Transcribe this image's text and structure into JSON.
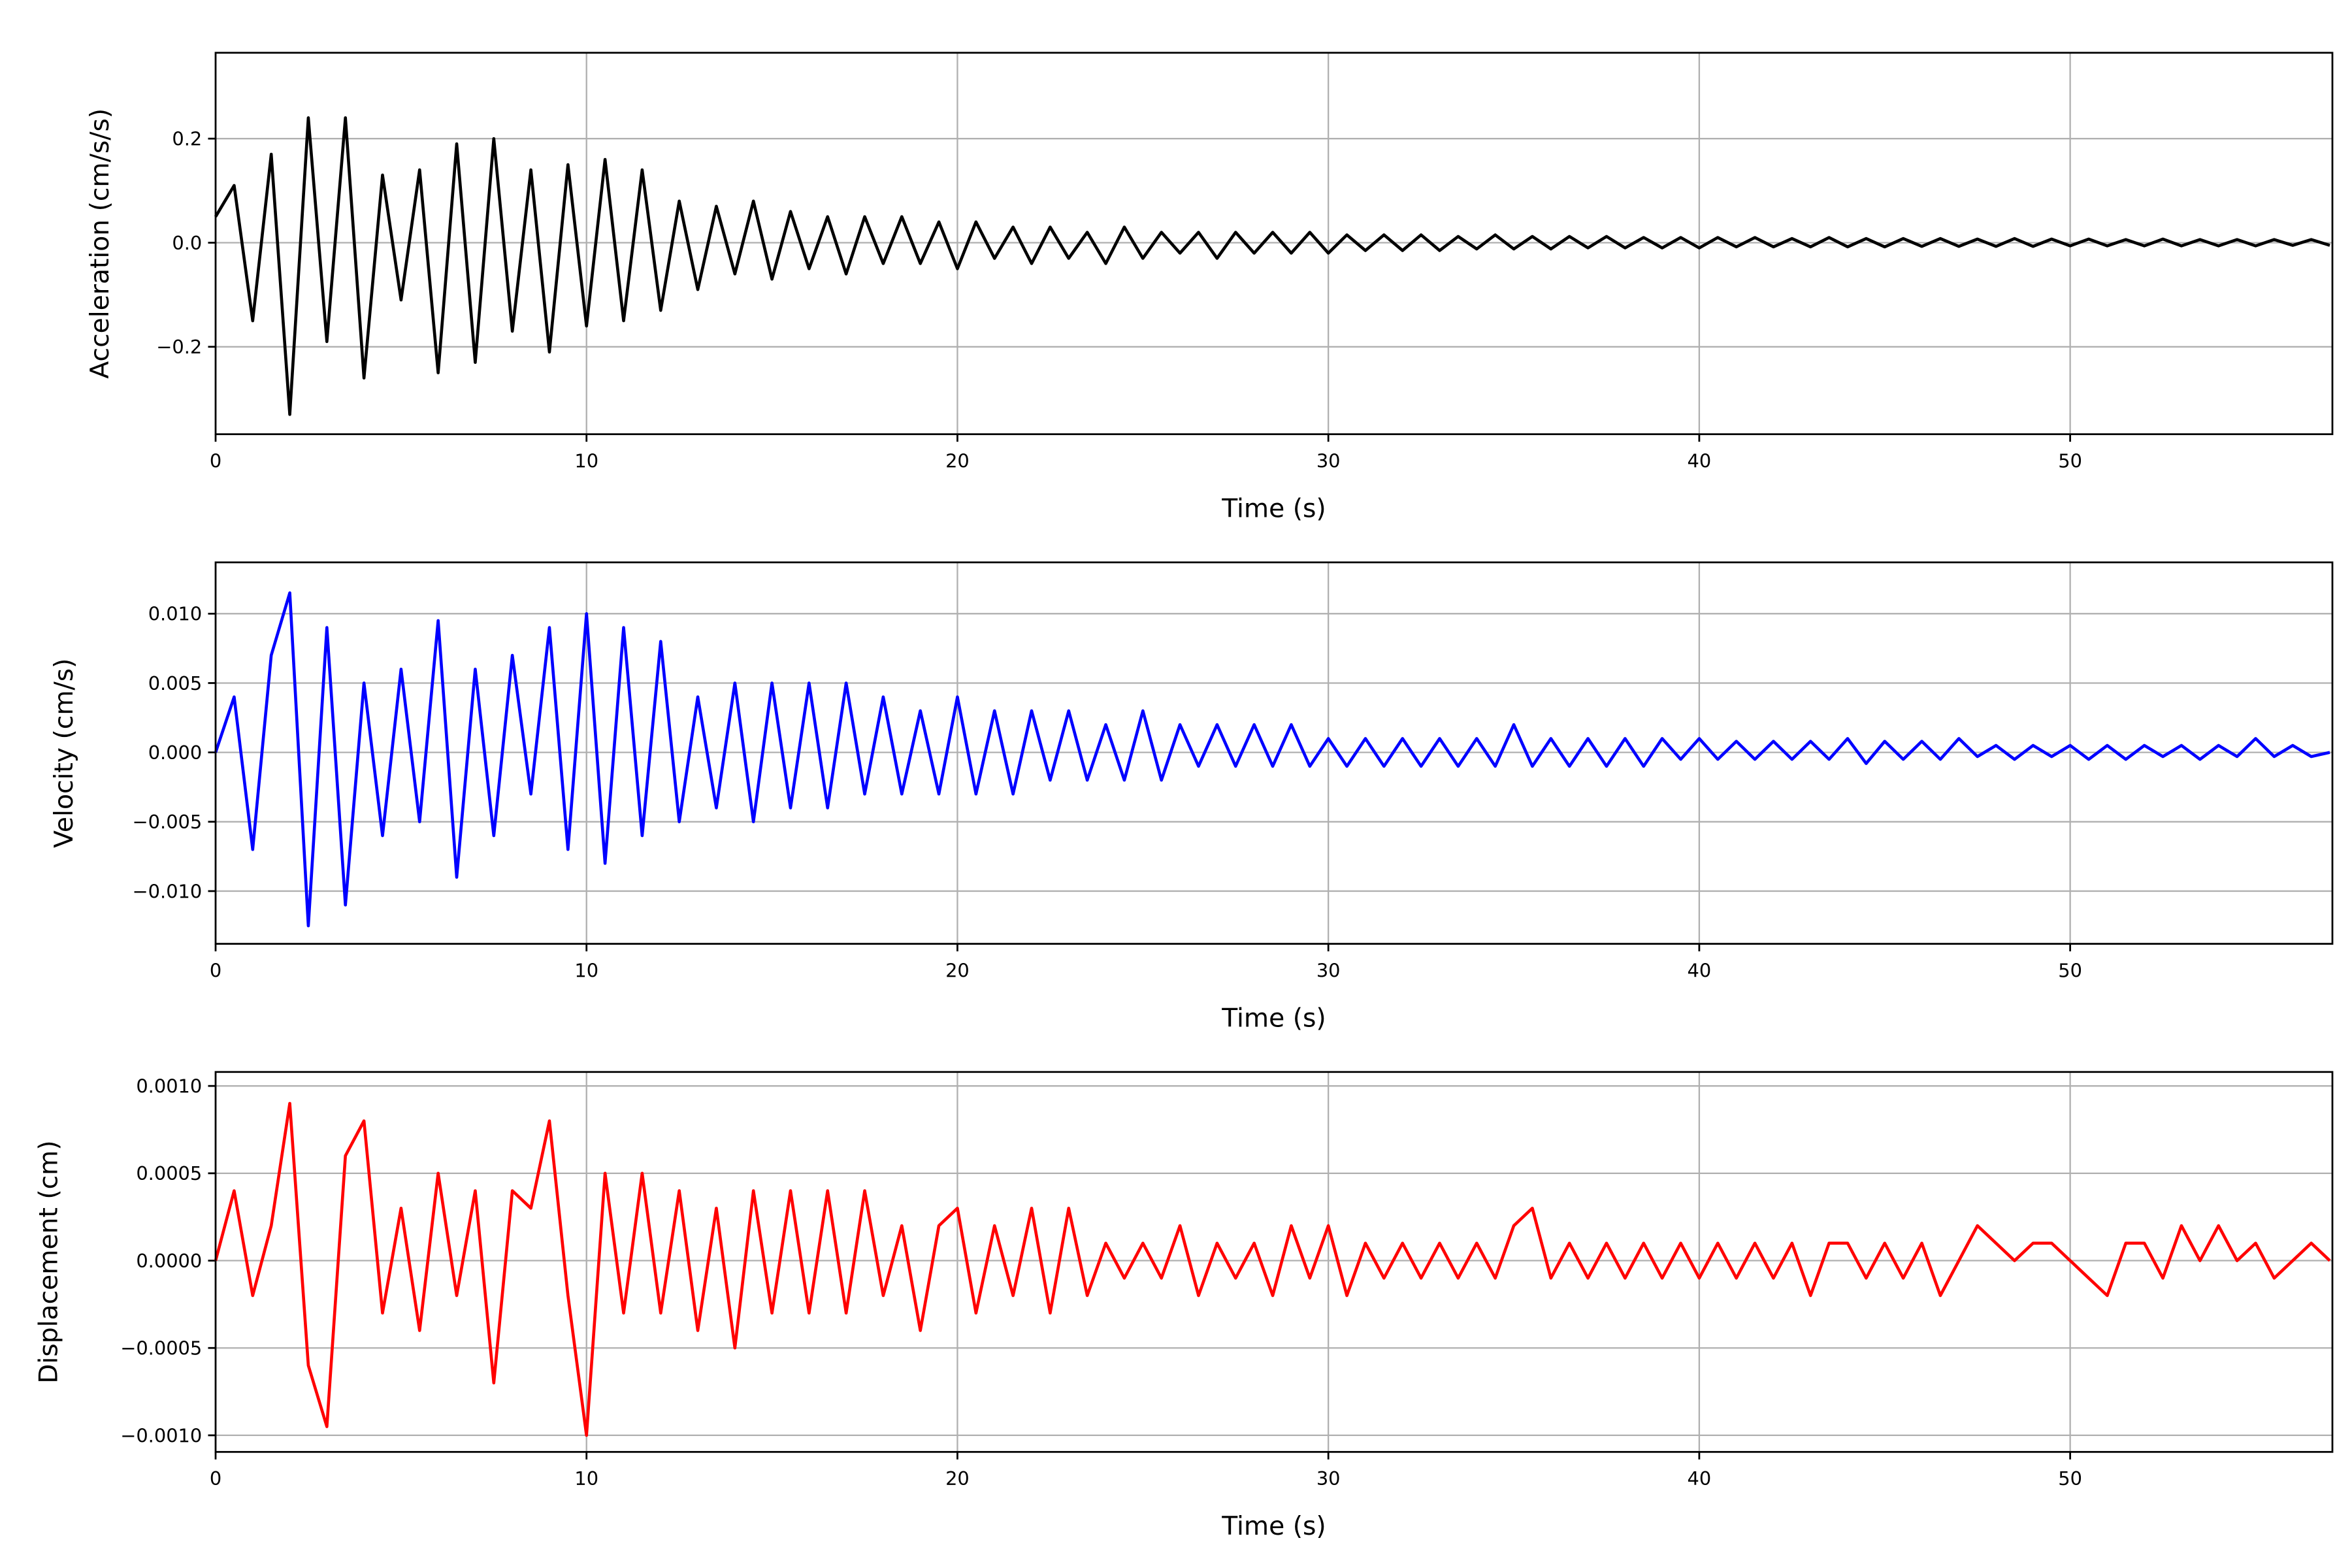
{
  "chart_data": [
    {
      "type": "line",
      "title": "",
      "xlabel": "Time (s)",
      "ylabel": "Acceleration (cm/s/s)",
      "xlim": [
        0,
        57.07
      ],
      "ylim": [
        -0.368,
        0.365
      ],
      "xticks": [
        0,
        10,
        20,
        30,
        40,
        50
      ],
      "yticks": [
        -0.2,
        0.0,
        0.2
      ],
      "ytick_labels": [
        "−0.2",
        "0.0",
        "0.2"
      ],
      "grid": true,
      "x_step": 0.5,
      "series": [
        {
          "name": "acceleration",
          "color": "#000000",
          "values": [
            0.05,
            0.11,
            -0.15,
            0.17,
            -0.33,
            0.24,
            -0.19,
            0.24,
            -0.26,
            0.13,
            -0.11,
            0.14,
            -0.25,
            0.19,
            -0.23,
            0.2,
            -0.17,
            0.14,
            -0.21,
            0.15,
            -0.16,
            0.16,
            -0.15,
            0.14,
            -0.13,
            0.08,
            -0.09,
            0.07,
            -0.06,
            0.08,
            -0.07,
            0.06,
            -0.05,
            0.05,
            -0.06,
            0.05,
            -0.04,
            0.05,
            -0.04,
            0.04,
            -0.05,
            0.04,
            -0.03,
            0.03,
            -0.04,
            0.03,
            -0.03,
            0.02,
            -0.04,
            0.03,
            -0.03,
            0.02,
            -0.02,
            0.02,
            -0.03,
            0.02,
            -0.02,
            0.02,
            -0.02,
            0.02,
            -0.02,
            0.015,
            -0.015,
            0.015,
            -0.015,
            0.015,
            -0.015,
            0.012,
            -0.012,
            0.015,
            -0.012,
            0.012,
            -0.012,
            0.012,
            -0.01,
            0.012,
            -0.01,
            0.01,
            -0.01,
            0.01,
            -0.01,
            0.01,
            -0.008,
            0.01,
            -0.008,
            0.008,
            -0.008,
            0.01,
            -0.008,
            0.008,
            -0.008,
            0.008,
            -0.007,
            0.008,
            -0.007,
            0.007,
            -0.007,
            0.008,
            -0.007,
            0.007,
            -0.006,
            0.007,
            -0.006,
            0.006,
            -0.006,
            0.007,
            -0.006,
            0.006,
            -0.006,
            0.006,
            -0.006,
            0.006,
            -0.005,
            0.006,
            -0.005
          ]
        }
      ]
    },
    {
      "type": "line",
      "title": "",
      "xlabel": "Time (s)",
      "ylabel": "Velocity (cm/s)",
      "xlim": [
        0,
        57.07
      ],
      "ylim": [
        -0.0138,
        0.0137
      ],
      "xticks": [
        0,
        10,
        20,
        30,
        40,
        50
      ],
      "yticks": [
        -0.01,
        -0.005,
        0.0,
        0.005,
        0.01
      ],
      "ytick_labels": [
        "−0.010",
        "−0.005",
        "0.000",
        "0.005",
        "0.010"
      ],
      "grid": true,
      "x_step": 0.5,
      "series": [
        {
          "name": "velocity",
          "color": "#0000ff",
          "values": [
            0.0,
            0.004,
            -0.007,
            0.007,
            0.0115,
            -0.0125,
            0.009,
            -0.011,
            0.005,
            -0.006,
            0.006,
            -0.005,
            0.0095,
            -0.009,
            0.006,
            -0.006,
            0.007,
            -0.003,
            0.009,
            -0.007,
            0.01,
            -0.008,
            0.009,
            -0.006,
            0.008,
            -0.005,
            0.004,
            -0.004,
            0.005,
            -0.005,
            0.005,
            -0.004,
            0.005,
            -0.004,
            0.005,
            -0.003,
            0.004,
            -0.003,
            0.003,
            -0.003,
            0.004,
            -0.003,
            0.003,
            -0.003,
            0.003,
            -0.002,
            0.003,
            -0.002,
            0.002,
            -0.002,
            0.003,
            -0.002,
            0.002,
            -0.001,
            0.002,
            -0.001,
            0.002,
            -0.001,
            0.002,
            -0.001,
            0.001,
            -0.001,
            0.001,
            -0.001,
            0.001,
            -0.001,
            0.001,
            -0.001,
            0.001,
            -0.001,
            0.002,
            -0.001,
            0.001,
            -0.001,
            0.001,
            -0.001,
            0.001,
            -0.001,
            0.001,
            -0.0005,
            0.001,
            -0.0005,
            0.0008,
            -0.0005,
            0.0008,
            -0.0005,
            0.0008,
            -0.0005,
            0.001,
            -0.0008,
            0.0008,
            -0.0005,
            0.0008,
            -0.0005,
            0.001,
            -0.0003,
            0.0005,
            -0.0005,
            0.0005,
            -0.0003,
            0.0005,
            -0.0005,
            0.0005,
            -0.0005,
            0.0005,
            -0.0003,
            0.0005,
            -0.0005,
            0.0005,
            -0.0003,
            0.001,
            -0.0003,
            0.0005,
            -0.0003,
            0.0
          ]
        }
      ]
    },
    {
      "type": "line",
      "title": "",
      "xlabel": "Time (s)",
      "ylabel": "Displacement (cm)",
      "xlim": [
        0,
        57.07
      ],
      "ylim": [
        -0.001095,
        0.00108
      ],
      "xticks": [
        0,
        10,
        20,
        30,
        40,
        50
      ],
      "yticks": [
        -0.001,
        -0.0005,
        0.0,
        0.0005,
        0.001
      ],
      "ytick_labels": [
        "−0.0010",
        "−0.0005",
        "0.0000",
        "0.0005",
        "0.0010"
      ],
      "grid": true,
      "x_step": 0.5,
      "series": [
        {
          "name": "displacement",
          "color": "#ff0000",
          "values": [
            0.0,
            0.0004,
            -0.0002,
            0.0002,
            0.0009,
            -0.0006,
            -0.00095,
            0.0006,
            0.0008,
            -0.0003,
            0.0003,
            -0.0004,
            0.0005,
            -0.0002,
            0.0004,
            -0.0007,
            0.0004,
            0.0003,
            0.0008,
            -0.0002,
            -0.001,
            0.0005,
            -0.0003,
            0.0005,
            -0.0003,
            0.0004,
            -0.0004,
            0.0003,
            -0.0005,
            0.0004,
            -0.0003,
            0.0004,
            -0.0003,
            0.0004,
            -0.0003,
            0.0004,
            -0.0002,
            0.0002,
            -0.0004,
            0.0002,
            0.0003,
            -0.0003,
            0.0002,
            -0.0002,
            0.0003,
            -0.0003,
            0.0003,
            -0.0002,
            0.0001,
            -0.0001,
            0.0001,
            -0.0001,
            0.0002,
            -0.0002,
            0.0001,
            -0.0001,
            0.0001,
            -0.0002,
            0.0002,
            -0.0001,
            0.0002,
            -0.0002,
            0.0001,
            -0.0001,
            0.0001,
            -0.0001,
            0.0001,
            -0.0001,
            0.0001,
            -0.0001,
            0.0002,
            0.0003,
            -0.0001,
            0.0001,
            -0.0001,
            0.0001,
            -0.0001,
            0.0001,
            -0.0001,
            0.0001,
            -0.0001,
            0.0001,
            -0.0001,
            0.0001,
            -0.0001,
            0.0001,
            -0.0002,
            0.0001,
            0.0001,
            -0.0001,
            0.0001,
            -0.0001,
            0.0001,
            -0.0002,
            0.0,
            0.0002,
            0.0001,
            0.0,
            0.0001,
            0.0001,
            0.0,
            -0.0001,
            -0.0002,
            0.0001,
            0.0001,
            -0.0001,
            0.0002,
            0.0,
            0.0002,
            0.0,
            0.0001,
            -0.0001,
            0.0,
            0.0001,
            0.0
          ]
        }
      ]
    }
  ]
}
